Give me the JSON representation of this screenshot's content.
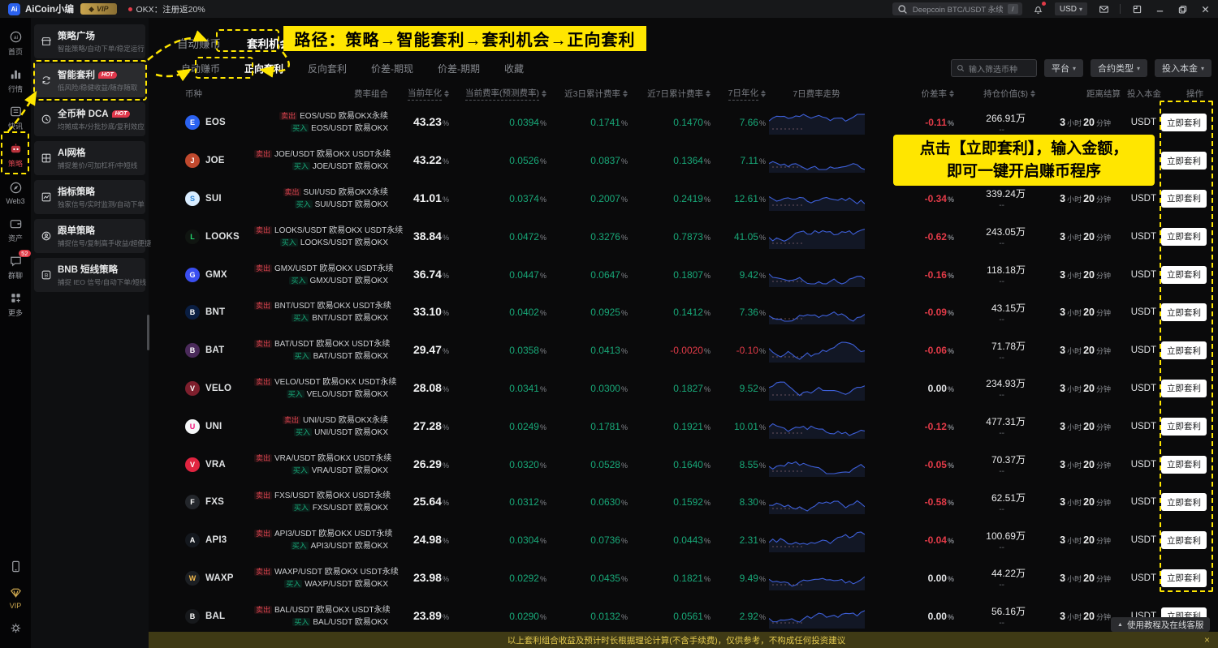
{
  "titlebar": {
    "app_name": "AiCoin小编",
    "vip_badge": "VIP",
    "promo": "OKX：注册返20%",
    "search_value": "Deepcoin BTC/USDT 永续",
    "search_key": "/",
    "currency": "USD"
  },
  "rail": {
    "items": [
      {
        "label": "首页",
        "icon": "home-icon",
        "active": false
      },
      {
        "label": "行情",
        "icon": "market-icon",
        "active": false
      },
      {
        "label": "快讯",
        "icon": "news-icon",
        "active": false
      },
      {
        "label": "策略",
        "icon": "strategy-icon",
        "active": true
      },
      {
        "label": "Web3",
        "icon": "web3-icon",
        "active": false
      },
      {
        "label": "资产",
        "icon": "assets-icon",
        "active": false
      },
      {
        "label": "群聊",
        "icon": "chat-icon",
        "active": false,
        "badge": "52"
      },
      {
        "label": "更多",
        "icon": "more-icon",
        "active": false
      }
    ],
    "bottom": [
      {
        "label": "",
        "icon": "phone-icon"
      },
      {
        "label": "VIP",
        "icon": "vip-icon",
        "vip": true
      },
      {
        "label": "",
        "icon": "gear-icon"
      }
    ]
  },
  "menu": {
    "items": [
      {
        "title": "策略广场",
        "subtitle": "智能策略/自动下单/稳定运行",
        "icon": "plaza-icon",
        "hot": false,
        "highlight": false
      },
      {
        "title": "智能套利",
        "subtitle": "低风险/稳健收益/随存随取",
        "icon": "arb-icon",
        "hot": true,
        "highlight": true
      },
      {
        "title": "全币种 DCA",
        "subtitle": "均摊成本/分批抄底/复利效应",
        "icon": "dca-icon",
        "hot": true,
        "highlight": false
      },
      {
        "title": "AI网格",
        "subtitle": "捕捉差价/可加杠杆/中短线",
        "icon": "grid-icon",
        "hot": false,
        "highlight": false
      },
      {
        "title": "指标策略",
        "subtitle": "独家信号/实时监测/自动下单",
        "icon": "indicator-icon",
        "hot": false,
        "highlight": false
      },
      {
        "title": "跟单策略",
        "subtitle": "捕捉信号/复制高手收益/超便捷",
        "icon": "copy-icon",
        "hot": false,
        "highlight": false
      },
      {
        "title": "BNB 短线策略",
        "subtitle": "捕捉 IEO 信号/自动下单/短线",
        "icon": "bnb-icon",
        "hot": false,
        "highlight": false
      }
    ]
  },
  "tabs": [
    {
      "label": "自动赚币",
      "active": false
    },
    {
      "label": "套利机会",
      "active": true
    }
  ],
  "subtabs": [
    {
      "label": "自动赚币",
      "active": false
    },
    {
      "label": "正向套利",
      "active": true
    },
    {
      "label": "反向套利",
      "active": false
    },
    {
      "label": "价差-期现",
      "active": false
    },
    {
      "label": "价差-期期",
      "active": false
    },
    {
      "label": "收藏",
      "active": false
    }
  ],
  "filters": {
    "search_placeholder": "输入筛选币种",
    "platform": "平台",
    "contract_type": "合约类型",
    "capital": "投入本金"
  },
  "annotations": {
    "path_banner": "路径：策略→智能套利→套利机会→正向套利",
    "tip_line1": "点击【立即套利】，输入金额，",
    "tip_line2": "即可一键开启赚币程序"
  },
  "table": {
    "headers": [
      {
        "label": "币种",
        "sort": false,
        "tip": false
      },
      {
        "label": "费率组合",
        "sort": false,
        "tip": false
      },
      {
        "label": "当前年化",
        "sort": true,
        "tip": true
      },
      {
        "label": "当前费率(预测费率)",
        "sort": true,
        "tip": true
      },
      {
        "label": "近3日累计费率",
        "sort": true,
        "tip": false
      },
      {
        "label": "近7日累计费率",
        "sort": true,
        "tip": false
      },
      {
        "label": "7日年化",
        "sort": true,
        "tip": true
      },
      {
        "label": "7日费率走势",
        "sort": false,
        "tip": false
      },
      {
        "label": "价差率",
        "sort": true,
        "tip": false
      },
      {
        "label": "持仓价值($)",
        "sort": true,
        "tip": false
      },
      {
        "label": "距离结算",
        "sort": false,
        "tip": false
      },
      {
        "label": "投入本金",
        "sort": false,
        "tip": false
      },
      {
        "label": "操作",
        "sort": false,
        "tip": false
      }
    ],
    "sell_tag": "卖出",
    "buy_tag": "买入",
    "settle_units": [
      "小时",
      "分钟"
    ],
    "action_label": "立即套利",
    "rows": [
      {
        "coin": "EOS",
        "icon_bg": "#2b62f0",
        "icon_fg": "#ffffff",
        "sell": "EOS/USD 欧易OKX永续",
        "buy": "EOS/USDT 欧易OKX",
        "annual": "43.23",
        "rate": "0.0394",
        "d3": "0.1741",
        "d7": "0.1470",
        "y7": "7.66",
        "spread": "-0.11",
        "position": "266.91万",
        "position_sub": "--",
        "settle_h": "3",
        "settle_m": "20",
        "capital": "USDT",
        "seed": 7
      },
      {
        "coin": "JOE",
        "icon_bg": "#c0492e",
        "icon_fg": "#ffffff",
        "sell": "JOE/USDT 欧易OKX USDT永续",
        "buy": "JOE/USDT 欧易OKX",
        "annual": "43.22",
        "rate": "0.0526",
        "d3": "0.0837",
        "d7": "0.1364",
        "y7": "7.11",
        "spread": "",
        "position": "",
        "position_sub": "",
        "settle_h": "",
        "settle_m": "",
        "capital": "",
        "seed": 12
      },
      {
        "coin": "SUI",
        "icon_bg": "#d9edff",
        "icon_fg": "#2f86d6",
        "sell": "SUI/USD 欧易OKX永续",
        "buy": "SUI/USDT 欧易OKX",
        "annual": "41.01",
        "rate": "0.0374",
        "d3": "0.2007",
        "d7": "0.2419",
        "y7": "12.61",
        "spread": "-0.34",
        "position": "339.24万",
        "position_sub": "--",
        "settle_h": "3",
        "settle_m": "20",
        "capital": "USDT",
        "seed": 3
      },
      {
        "coin": "LOOKS",
        "icon_bg": "#101511",
        "icon_fg": "#21d96f",
        "sell": "LOOKS/USDT 欧易OKX USDT永续",
        "buy": "LOOKS/USDT 欧易OKX",
        "annual": "38.84",
        "rate": "0.0472",
        "d3": "0.3276",
        "d7": "0.7873",
        "y7": "41.05",
        "spread": "-0.62",
        "position": "243.05万",
        "position_sub": "--",
        "settle_h": "3",
        "settle_m": "20",
        "capital": "USDT",
        "seed": 21
      },
      {
        "coin": "GMX",
        "icon_bg": "#3a4ef0",
        "icon_fg": "#ffffff",
        "sell": "GMX/USDT 欧易OKX USDT永续",
        "buy": "GMX/USDT 欧易OKX",
        "annual": "36.74",
        "rate": "0.0447",
        "d3": "0.0647",
        "d7": "0.1807",
        "y7": "9.42",
        "spread": "-0.16",
        "position": "118.18万",
        "position_sub": "--",
        "settle_h": "3",
        "settle_m": "20",
        "capital": "USDT",
        "seed": 9
      },
      {
        "coin": "BNT",
        "icon_bg": "#0a1e42",
        "icon_fg": "#ffffff",
        "sell": "BNT/USDT 欧易OKX USDT永续",
        "buy": "BNT/USDT 欧易OKX",
        "annual": "33.10",
        "rate": "0.0402",
        "d3": "0.0925",
        "d7": "0.1412",
        "y7": "7.36",
        "spread": "-0.09",
        "position": "43.15万",
        "position_sub": "--",
        "settle_h": "3",
        "settle_m": "20",
        "capital": "USDT",
        "seed": 16
      },
      {
        "coin": "BAT",
        "icon_bg": "#4a2a5a",
        "icon_fg": "#ffffff",
        "sell": "BAT/USDT 欧易OKX USDT永续",
        "buy": "BAT/USDT 欧易OKX",
        "annual": "29.47",
        "rate": "0.0358",
        "d3": "0.0413",
        "d7": "-0.0020",
        "y7": "-0.10",
        "spread": "-0.06",
        "position": "71.78万",
        "position_sub": "--",
        "settle_h": "3",
        "settle_m": "20",
        "capital": "USDT",
        "seed": 5
      },
      {
        "coin": "VELO",
        "icon_bg": "#7e1f2d",
        "icon_fg": "#ffffff",
        "sell": "VELO/USDT 欧易OKX USDT永续",
        "buy": "VELO/USDT 欧易OKX",
        "annual": "28.08",
        "rate": "0.0341",
        "d3": "0.0300",
        "d7": "0.1827",
        "y7": "9.52",
        "spread": "0.00",
        "position": "234.93万",
        "position_sub": "--",
        "settle_h": "3",
        "settle_m": "20",
        "capital": "USDT",
        "seed": 11
      },
      {
        "coin": "UNI",
        "icon_bg": "#f5f6f8",
        "icon_fg": "#f50d7a",
        "sell": "UNI/USD 欧易OKX永续",
        "buy": "UNI/USDT 欧易OKX",
        "annual": "27.28",
        "rate": "0.0249",
        "d3": "0.1781",
        "d7": "0.1921",
        "y7": "10.01",
        "spread": "-0.12",
        "position": "477.31万",
        "position_sub": "--",
        "settle_h": "3",
        "settle_m": "20",
        "capital": "USDT",
        "seed": 19
      },
      {
        "coin": "VRA",
        "icon_bg": "#e02440",
        "icon_fg": "#ffffff",
        "sell": "VRA/USDT 欧易OKX USDT永续",
        "buy": "VRA/USDT 欧易OKX",
        "annual": "26.29",
        "rate": "0.0320",
        "d3": "0.0528",
        "d7": "0.1640",
        "y7": "8.55",
        "spread": "-0.05",
        "position": "70.37万",
        "position_sub": "--",
        "settle_h": "3",
        "settle_m": "20",
        "capital": "USDT",
        "seed": 4
      },
      {
        "coin": "FXS",
        "icon_bg": "#23262b",
        "icon_fg": "#ffffff",
        "sell": "FXS/USDT 欧易OKX USDT永续",
        "buy": "FXS/USDT 欧易OKX",
        "annual": "25.64",
        "rate": "0.0312",
        "d3": "0.0630",
        "d7": "0.1592",
        "y7": "8.30",
        "spread": "-0.58",
        "position": "62.51万",
        "position_sub": "--",
        "settle_h": "3",
        "settle_m": "20",
        "capital": "USDT",
        "seed": 14
      },
      {
        "coin": "API3",
        "icon_bg": "#14181e",
        "icon_fg": "#ffffff",
        "sell": "API3/USDT 欧易OKX USDT永续",
        "buy": "API3/USDT 欧易OKX",
        "annual": "24.98",
        "rate": "0.0304",
        "d3": "0.0736",
        "d7": "0.0443",
        "y7": "2.31",
        "spread": "-0.04",
        "position": "100.69万",
        "position_sub": "--",
        "settle_h": "3",
        "settle_m": "20",
        "capital": "USDT",
        "seed": 8
      },
      {
        "coin": "WAXP",
        "icon_bg": "#1c1f23",
        "icon_fg": "#f2b94d",
        "sell": "WAXP/USDT 欧易OKX USDT永续",
        "buy": "WAXP/USDT 欧易OKX",
        "annual": "23.98",
        "rate": "0.0292",
        "d3": "0.0435",
        "d7": "0.1821",
        "y7": "9.49",
        "spread": "0.00",
        "position": "44.22万",
        "position_sub": "--",
        "settle_h": "3",
        "settle_m": "20",
        "capital": "USDT",
        "seed": 23
      },
      {
        "coin": "BAL",
        "icon_bg": "#17191c",
        "icon_fg": "#ffffff",
        "sell": "BAL/USDT 欧易OKX USDT永续",
        "buy": "BAL/USDT 欧易OKX",
        "annual": "23.89",
        "rate": "0.0290",
        "d3": "0.0132",
        "d7": "0.0561",
        "y7": "2.92",
        "spread": "0.00",
        "position": "56.16万",
        "position_sub": "--",
        "settle_h": "3",
        "settle_m": "20",
        "capital": "USDT",
        "seed": 6
      }
    ]
  },
  "footer": {
    "disclaimer": "以上套利组合收益及预计时长根据理论计算(不含手续费)，仅供参考，不构成任何投资建议",
    "close": "×",
    "help": "使用教程及在线客服"
  },
  "colors": {
    "accent_yellow": "#ffe600",
    "green": "#18a878",
    "red": "#e23b48",
    "spark_blue": "#3d5fd8"
  }
}
